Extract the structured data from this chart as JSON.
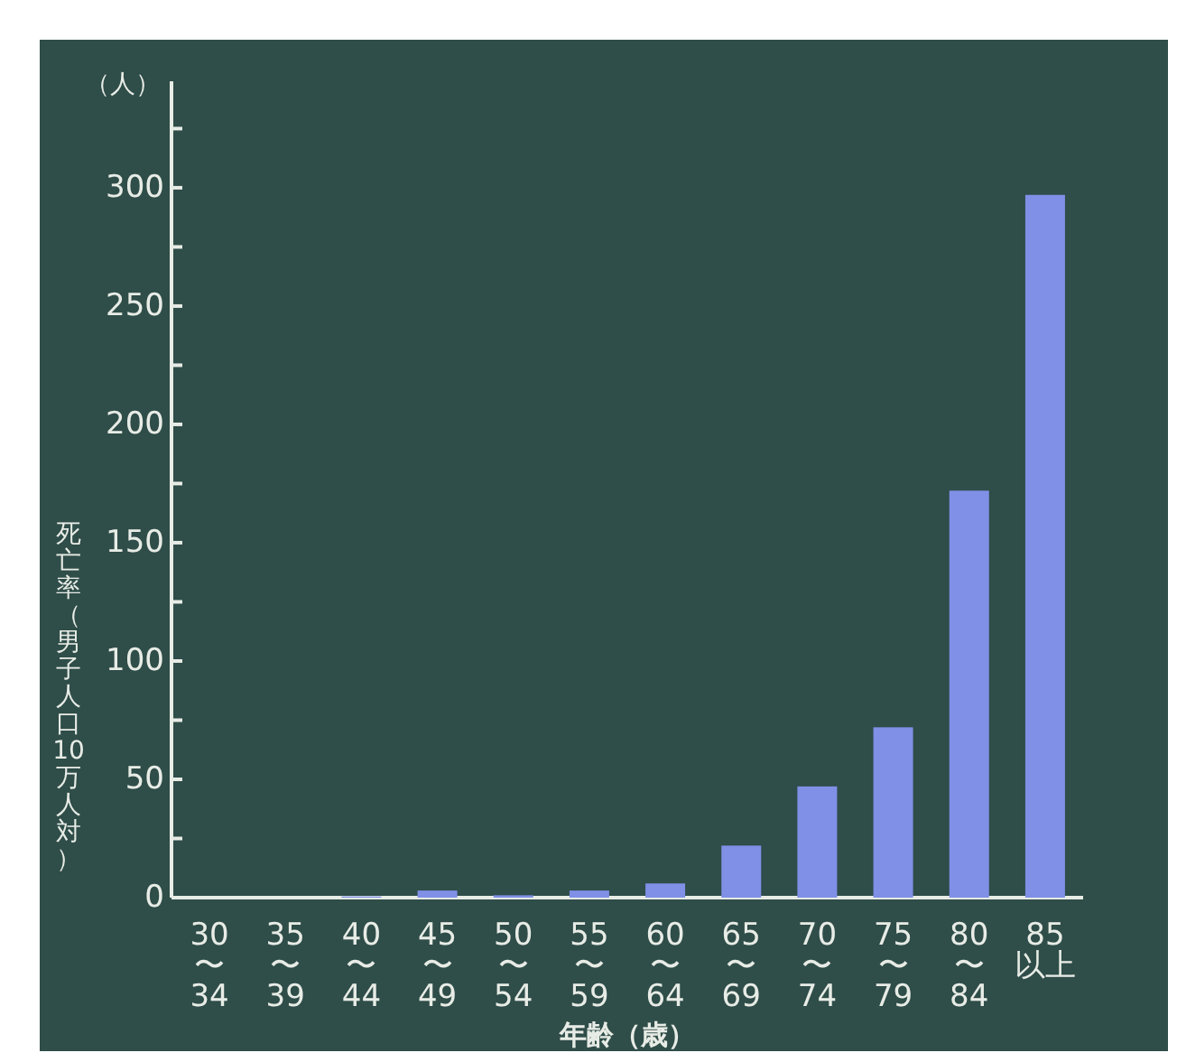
{
  "chart_data": {
    "type": "bar",
    "categories": [
      "30\n〜\n34",
      "35\n〜\n39",
      "40\n〜\n44",
      "45\n〜\n49",
      "50\n〜\n54",
      "55\n〜\n59",
      "60\n〜\n64",
      "65\n〜\n69",
      "70\n〜\n74",
      "75\n〜\n79",
      "80\n〜\n84",
      "85\n以上"
    ],
    "values": [
      0,
      0,
      0.5,
      3,
      1,
      3,
      6,
      22,
      47,
      72,
      172,
      297
    ],
    "color": "#7f90e6",
    "xlabel": "年齢（歳）",
    "ylabel": "死亡率（男子人口10万人対）",
    "annotations": [
      "（人）"
    ],
    "ylim": [
      0,
      345
    ],
    "yticks": [
      0,
      {
        "value": 25,
        "label": null
      },
      50,
      {
        "value": 75,
        "label": null
      },
      100,
      {
        "value": 125,
        "label": null
      },
      150,
      {
        "value": 175,
        "label": null
      },
      200,
      {
        "value": 225,
        "label": null
      },
      250,
      {
        "value": 275,
        "label": null
      },
      300,
      {
        "value": 325,
        "label": null
      }
    ],
    "grid": false
  }
}
